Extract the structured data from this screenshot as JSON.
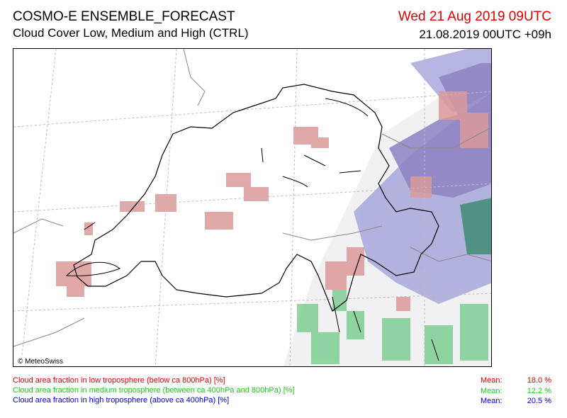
{
  "header": {
    "title": "COSMO-E ENSEMBLE_FORECAST",
    "subtitle": "Cloud Cover Low, Medium and High (CTRL)",
    "valid_time": "Wed 21 Aug 2019 09UTC",
    "run_time": "21.08.2019 00UTC +09h",
    "valid_time_color": "#e00000"
  },
  "map": {
    "copyright": "© MeteoSwiss",
    "layer_colors": {
      "low": "#d98a8a",
      "medium": "#7bc98f",
      "high": "#9a9ad6"
    }
  },
  "legend": [
    {
      "label": "Cloud area fraction in low troposphere (below ca 800hPa) [%]",
      "mean_label": "Mean:",
      "mean_value": "18.0 %",
      "color": "#e00000"
    },
    {
      "label": "Cloud area fraction in medium troposphere (between ca 400hPa and 800hPa) [%]",
      "mean_label": "Mean:",
      "mean_value": "12.2 %",
      "color": "#1ec81e"
    },
    {
      "label": "Cloud area fraction in high troposphere (above ca 400hPa) [%]",
      "mean_label": "Mean:",
      "mean_value": "20.5 %",
      "color": "#0000e0"
    }
  ]
}
